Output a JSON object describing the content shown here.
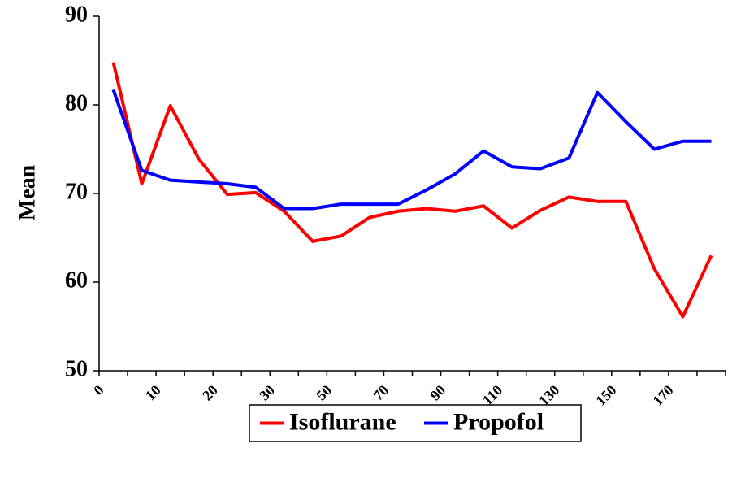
{
  "chart_data": {
    "type": "line",
    "ylabel": "Mean",
    "categories": [
      "0",
      null,
      "10",
      null,
      "20",
      null,
      "30",
      null,
      "50",
      null,
      "70",
      null,
      "90",
      null,
      "110",
      null,
      "130",
      null,
      "150",
      null,
      "170",
      null
    ],
    "series": [
      {
        "name": "Isoflurane",
        "color": "#ff0000",
        "values": [
          84.8,
          71.1,
          79.9,
          73.9,
          69.9,
          70.1,
          68.0,
          64.6,
          65.2,
          67.3,
          68.0,
          68.3,
          68.0,
          68.6,
          66.1,
          68.1,
          69.6,
          69.1,
          69.1,
          61.5,
          56.1,
          63.0
        ]
      },
      {
        "name": "Propofol",
        "color": "#0000ff",
        "values": [
          81.7,
          72.6,
          71.5,
          71.3,
          71.1,
          70.7,
          68.3,
          68.3,
          68.8,
          68.8,
          68.8,
          70.4,
          72.2,
          74.8,
          73.0,
          72.8,
          74.0,
          81.4,
          78.1,
          75.0,
          75.9,
          75.9
        ]
      }
    ],
    "ylim": [
      50,
      90
    ],
    "yticks": [
      50,
      60,
      70,
      80,
      90
    ],
    "grid": false,
    "legend": "bottom"
  }
}
